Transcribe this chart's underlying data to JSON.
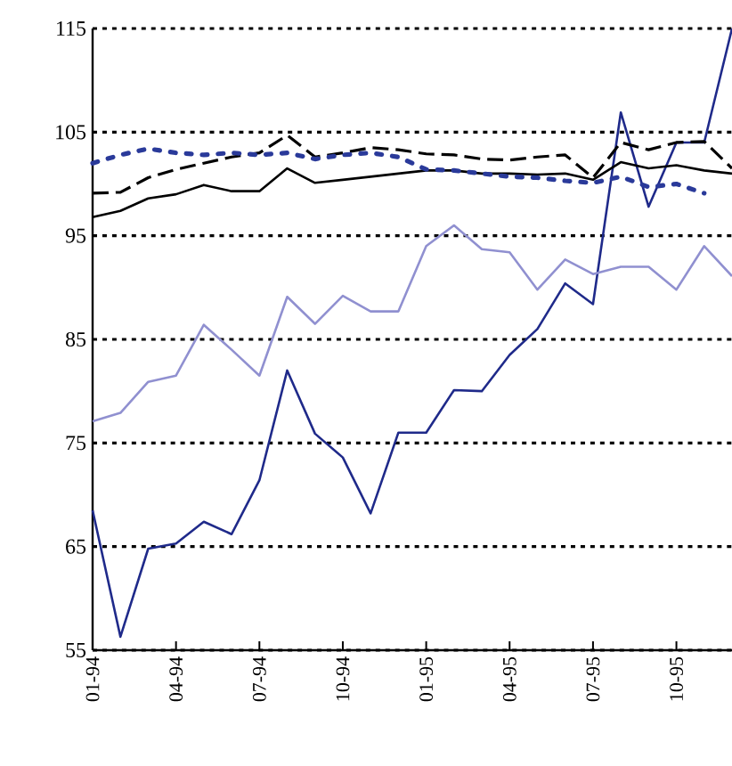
{
  "chart_data": {
    "type": "line",
    "categories": [
      "01-94",
      null,
      null,
      "04-94",
      null,
      null,
      "07-94",
      null,
      null,
      "10-94",
      null,
      null,
      "01-95",
      null,
      null,
      "04-95",
      null,
      null,
      "07-95",
      null,
      null,
      "10-95",
      null,
      null
    ],
    "ylim": [
      55,
      115
    ],
    "yticks": [
      55,
      65,
      75,
      85,
      95,
      105,
      115
    ],
    "grid": "y",
    "series": [
      {
        "color": "#1f2a8a",
        "line_style": "solid",
        "values": [
          68.5,
          56.3,
          64.8,
          65.3,
          67.4,
          66.2,
          71.4,
          82.0,
          75.9,
          73.6,
          68.2,
          76.0,
          76.0,
          80.1,
          80.0,
          83.5,
          86.0,
          90.4,
          88.4,
          106.9,
          97.8,
          104.0,
          104.0,
          115.0
        ]
      },
      {
        "color": "#9090d0",
        "line_style": "solid",
        "values": [
          77.1,
          77.9,
          80.9,
          81.5,
          86.4,
          84.0,
          81.5,
          89.1,
          86.5,
          89.2,
          87.7,
          87.7,
          94.0,
          96.0,
          93.7,
          93.4,
          89.8,
          92.7,
          91.3,
          92.0,
          92.0,
          89.8,
          94.0,
          91.1
        ]
      },
      {
        "color": "#000000",
        "line_style": "solid",
        "values": [
          96.8,
          97.4,
          98.6,
          99.0,
          99.9,
          99.3,
          99.3,
          101.5,
          100.1,
          100.4,
          100.7,
          101.0,
          101.3,
          101.3,
          101.0,
          101.0,
          100.9,
          101.0,
          100.4,
          102.1,
          101.5,
          101.8,
          101.3,
          101.0
        ]
      },
      {
        "color": "#000000",
        "line_style": "dashed",
        "values": [
          99.1,
          99.2,
          100.6,
          101.4,
          102.0,
          102.6,
          103.0,
          104.7,
          102.6,
          103.0,
          103.5,
          103.3,
          102.9,
          102.8,
          102.4,
          102.3,
          102.6,
          102.8,
          100.6,
          104.0,
          103.3,
          104.0,
          104.1,
          101.5
        ]
      },
      {
        "color": "#2a3a9a",
        "line_style": "dotted",
        "values": [
          102.0,
          102.8,
          103.4,
          103.0,
          102.8,
          103.0,
          102.8,
          103.0,
          102.4,
          102.8,
          103.0,
          102.6,
          101.4,
          101.3,
          101.0,
          100.7,
          100.6,
          100.3,
          100.1,
          100.7,
          99.7,
          100.0,
          99.1,
          null
        ]
      }
    ]
  }
}
